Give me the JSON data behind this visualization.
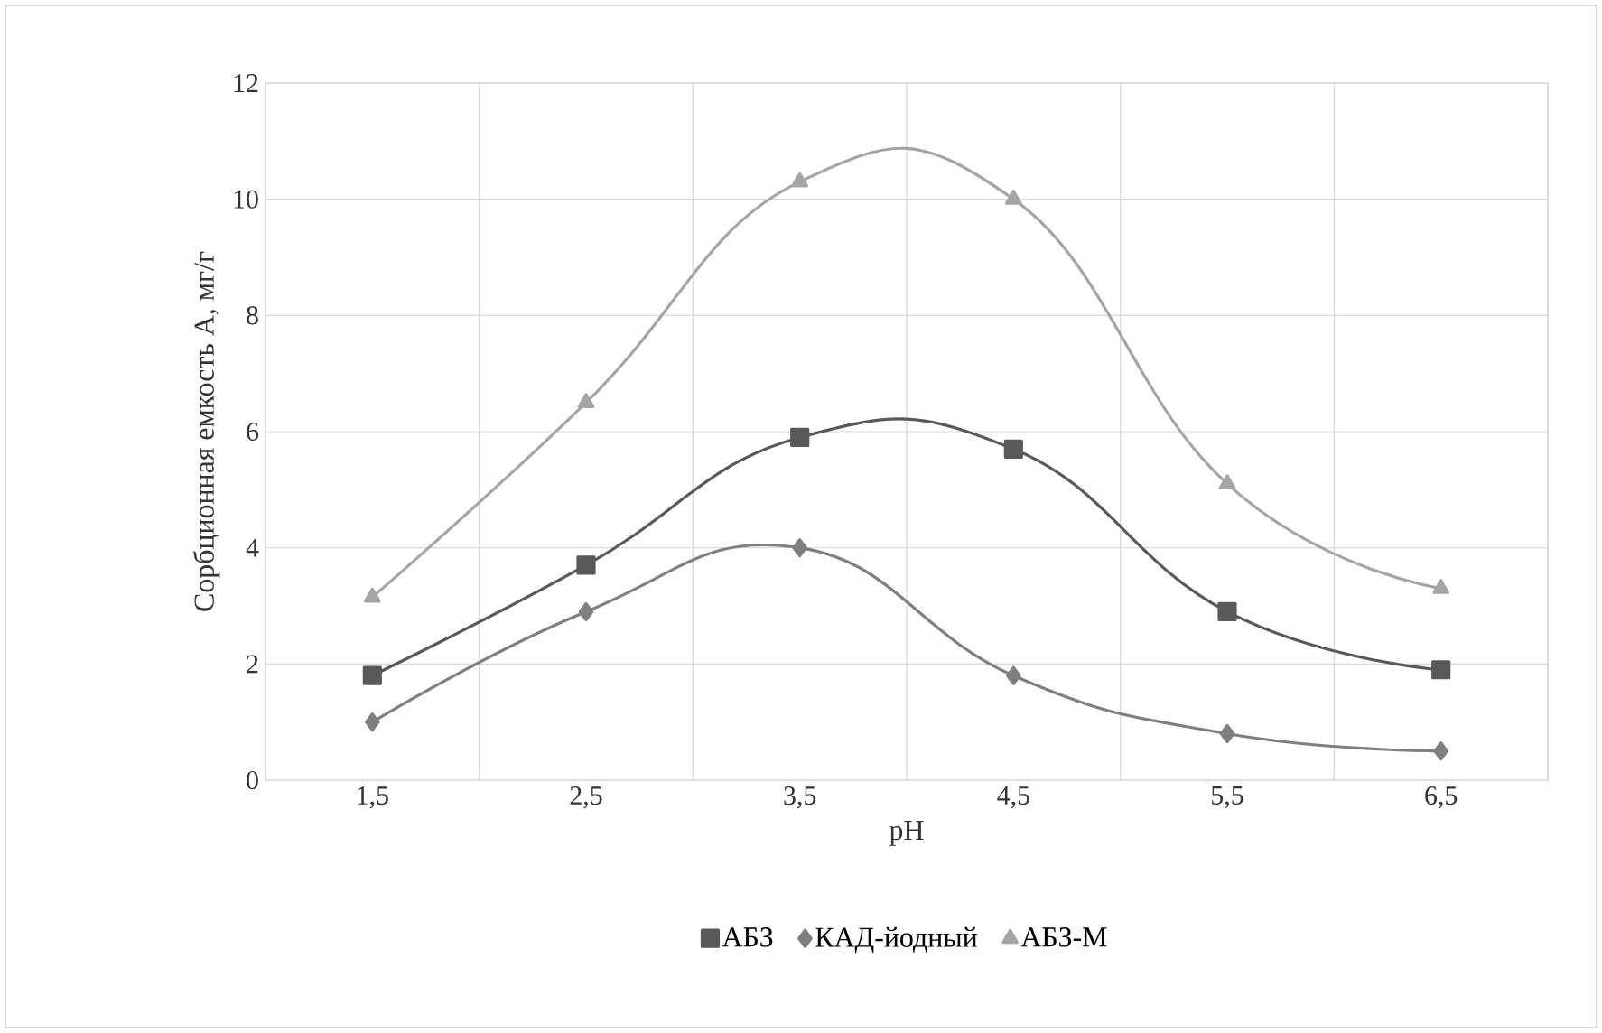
{
  "chart_data": {
    "type": "line",
    "xlabel": "pH",
    "ylabel": "Сорбционная емкость А, мг/г",
    "categories": [
      "1,5",
      "2,5",
      "3,5",
      "4,5",
      "5,5",
      "6,5"
    ],
    "ylim": [
      0,
      12
    ],
    "yticks": [
      0,
      2,
      4,
      6,
      8,
      10,
      12
    ],
    "grid": true,
    "legend": "bottom",
    "line_style": "solid",
    "series": [
      {
        "name": "АБЗ",
        "color": "#595959",
        "marker": "square",
        "values": [
          1.8,
          3.7,
          5.9,
          5.7,
          2.9,
          1.9
        ]
      },
      {
        "name": "КАД-йодный",
        "color": "#7f7f7f",
        "marker": "diamond",
        "values": [
          1.0,
          2.9,
          4.0,
          1.8,
          0.8,
          0.5
        ]
      },
      {
        "name": "АБЗ-М",
        "color": "#a5a5a5",
        "marker": "triangle",
        "values": [
          3.15,
          6.5,
          10.3,
          10.0,
          5.1,
          3.3
        ]
      }
    ]
  }
}
